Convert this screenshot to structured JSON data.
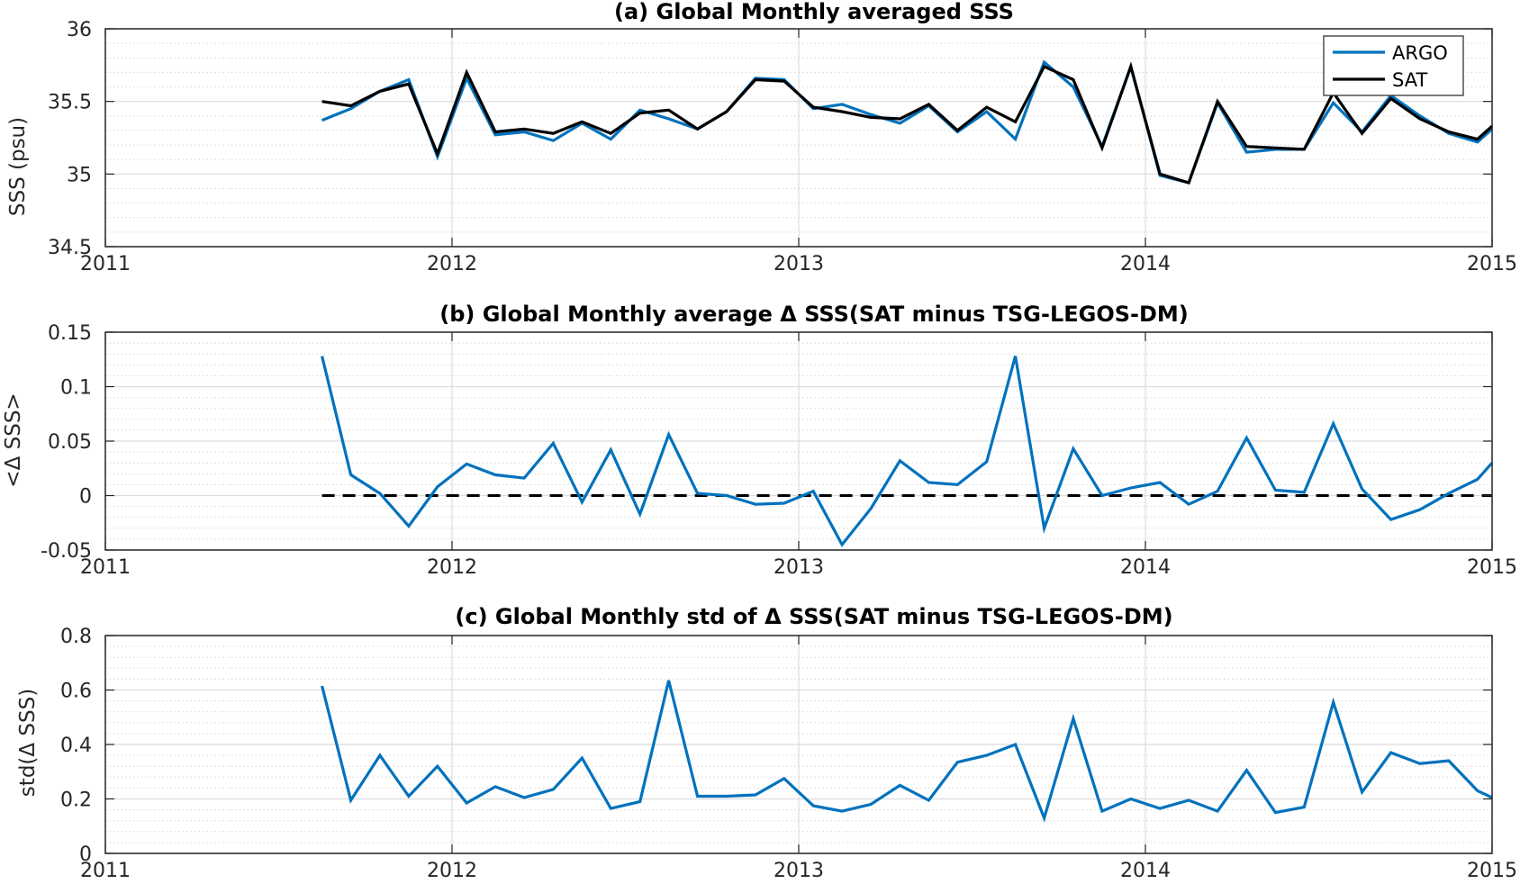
{
  "chart_data": [
    {
      "type": "line",
      "title": "(a) Global Monthly averaged SSS",
      "xlabel": "",
      "ylabel": "SSS (psu)",
      "xlim": [
        2011,
        2015
      ],
      "ylim": [
        34.5,
        36
      ],
      "xticks": [
        "2011",
        "2012",
        "2013",
        "2014",
        "2015"
      ],
      "yticks": [
        "34.5",
        "35",
        "35.5",
        "36"
      ],
      "grid": true,
      "minor_grid": true,
      "legend": "top-right",
      "x": [
        2011.625,
        2011.708,
        2011.792,
        2011.875,
        2011.958,
        2012.042,
        2012.125,
        2012.208,
        2012.292,
        2012.375,
        2012.458,
        2012.542,
        2012.625,
        2012.708,
        2012.792,
        2012.875,
        2012.958,
        2013.042,
        2013.125,
        2013.208,
        2013.292,
        2013.375,
        2013.458,
        2013.542,
        2013.625,
        2013.708,
        2013.792,
        2013.875,
        2013.958,
        2014.042,
        2014.125,
        2014.208,
        2014.292,
        2014.375,
        2014.458,
        2014.542,
        2014.625,
        2014.708,
        2014.792,
        2014.875,
        2014.958,
        2015.0
      ],
      "series": [
        {
          "name": "ARGO",
          "color": "#0072BD",
          "values": [
            35.37,
            35.45,
            35.57,
            35.65,
            35.12,
            35.66,
            35.27,
            35.29,
            35.23,
            35.35,
            35.24,
            35.44,
            35.38,
            35.31,
            35.43,
            35.66,
            35.65,
            35.45,
            35.48,
            35.41,
            35.35,
            35.47,
            35.29,
            35.43,
            35.24,
            35.77,
            35.6,
            35.19,
            35.74,
            34.99,
            34.94,
            35.49,
            35.15,
            35.17,
            35.17,
            35.49,
            35.29,
            35.54,
            35.4,
            35.28,
            35.22,
            35.31
          ]
        },
        {
          "name": "SAT",
          "color": "#000000",
          "values": [
            35.5,
            35.47,
            35.57,
            35.62,
            35.14,
            35.7,
            35.29,
            35.31,
            35.28,
            35.36,
            35.28,
            35.42,
            35.44,
            35.31,
            35.43,
            35.65,
            35.64,
            35.46,
            35.43,
            35.39,
            35.38,
            35.48,
            35.3,
            35.46,
            35.36,
            35.74,
            35.65,
            35.18,
            35.74,
            35.0,
            34.94,
            35.5,
            35.19,
            35.18,
            35.17,
            35.56,
            35.28,
            35.52,
            35.38,
            35.29,
            35.24,
            35.33
          ]
        }
      ]
    },
    {
      "type": "line",
      "title": "(b) Global Monthly average Δ SSS(SAT minus TSG-LEGOS-DM)",
      "xlabel": "",
      "ylabel": "<Δ SSS>",
      "xlim": [
        2011,
        2015
      ],
      "ylim": [
        -0.05,
        0.15
      ],
      "xticks": [
        "2011",
        "2012",
        "2013",
        "2014",
        "2015"
      ],
      "yticks": [
        "-0.05",
        "0",
        "0.05",
        "0.1",
        "0.15"
      ],
      "grid": true,
      "minor_grid": true,
      "reference_line": {
        "y": 0,
        "style": "dashed",
        "color": "#000000"
      },
      "x": [
        2011.625,
        2011.708,
        2011.792,
        2011.875,
        2011.958,
        2012.042,
        2012.125,
        2012.208,
        2012.292,
        2012.375,
        2012.458,
        2012.542,
        2012.625,
        2012.708,
        2012.792,
        2012.875,
        2012.958,
        2013.042,
        2013.125,
        2013.208,
        2013.292,
        2013.375,
        2013.458,
        2013.542,
        2013.625,
        2013.708,
        2013.792,
        2013.875,
        2013.958,
        2014.042,
        2014.125,
        2014.208,
        2014.292,
        2014.375,
        2014.458,
        2014.542,
        2014.625,
        2014.708,
        2014.792,
        2014.875,
        2014.958,
        2015.0
      ],
      "series": [
        {
          "color": "#0072BD",
          "values": [
            0.128,
            0.019,
            0.002,
            -0.028,
            0.008,
            0.029,
            0.019,
            0.016,
            0.048,
            -0.006,
            0.042,
            -0.017,
            0.056,
            0.002,
            0.0,
            -0.008,
            -0.007,
            0.004,
            -0.045,
            -0.012,
            0.032,
            0.012,
            0.01,
            0.031,
            0.128,
            -0.03,
            0.043,
            0.0,
            0.007,
            0.012,
            -0.008,
            0.004,
            0.053,
            0.005,
            0.003,
            0.066,
            0.006,
            -0.022,
            -0.013,
            0.002,
            0.015,
            0.03
          ]
        }
      ]
    },
    {
      "type": "line",
      "title": "(c) Global Monthly std of Δ SSS(SAT minus TSG-LEGOS-DM)",
      "xlabel": "",
      "ylabel": "std(Δ SSS)",
      "xlim": [
        2011,
        2015
      ],
      "ylim": [
        0,
        0.8
      ],
      "xticks": [
        "2011",
        "2012",
        "2013",
        "2014",
        "2015"
      ],
      "yticks": [
        "0",
        "0.2",
        "0.4",
        "0.6",
        "0.8"
      ],
      "grid": true,
      "minor_grid": true,
      "x": [
        2011.625,
        2011.708,
        2011.792,
        2011.875,
        2011.958,
        2012.042,
        2012.125,
        2012.208,
        2012.292,
        2012.375,
        2012.458,
        2012.542,
        2012.625,
        2012.708,
        2012.792,
        2012.875,
        2012.958,
        2013.042,
        2013.125,
        2013.208,
        2013.292,
        2013.375,
        2013.458,
        2013.542,
        2013.625,
        2013.708,
        2013.792,
        2013.875,
        2013.958,
        2014.042,
        2014.125,
        2014.208,
        2014.292,
        2014.375,
        2014.458,
        2014.542,
        2014.625,
        2014.708,
        2014.792,
        2014.875,
        2014.958,
        2015.0
      ],
      "series": [
        {
          "color": "#0072BD",
          "values": [
            0.615,
            0.195,
            0.36,
            0.21,
            0.32,
            0.185,
            0.245,
            0.205,
            0.235,
            0.35,
            0.165,
            0.19,
            0.635,
            0.21,
            0.21,
            0.215,
            0.275,
            0.175,
            0.155,
            0.18,
            0.25,
            0.195,
            0.335,
            0.36,
            0.4,
            0.13,
            0.495,
            0.155,
            0.2,
            0.165,
            0.195,
            0.155,
            0.305,
            0.15,
            0.17,
            0.555,
            0.225,
            0.37,
            0.33,
            0.34,
            0.23,
            0.205
          ]
        }
      ]
    }
  ]
}
